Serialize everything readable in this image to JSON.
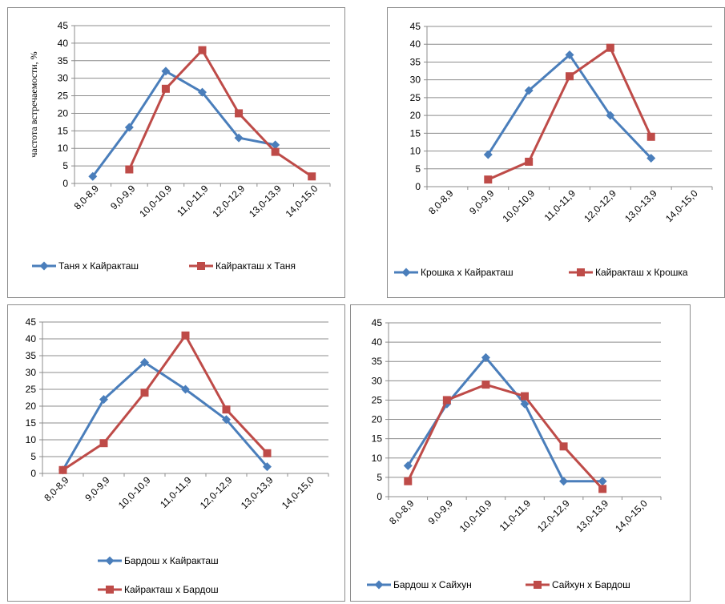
{
  "colors": {
    "series1": "#4a7ebb",
    "series2": "#be4b48",
    "grid": "#8c8c8c",
    "axis": "#8c8c8c"
  },
  "chart_data": [
    {
      "type": "line",
      "ylabel": "частота встречаемости, %",
      "xlabel": "",
      "ylim": [
        0,
        45
      ],
      "yticks": [
        0,
        5,
        10,
        15,
        20,
        25,
        30,
        35,
        40,
        45
      ],
      "grid": true,
      "legend": "bottom",
      "categories": [
        "8,0-8,9",
        "9,0-9,9",
        "10,0-10,9",
        "11,0-11,9",
        "12,0-12,9",
        "13,0-13,9",
        "14,0-15,0"
      ],
      "series": [
        {
          "name": "Таня х Кайракташ",
          "marker": "diamond",
          "values": [
            2,
            16,
            32,
            26,
            13,
            11,
            null
          ]
        },
        {
          "name": "Кайракташ х Таня",
          "marker": "square",
          "values": [
            null,
            4,
            27,
            38,
            20,
            9,
            2
          ]
        }
      ]
    },
    {
      "type": "line",
      "xlabel": "",
      "ylabel": "",
      "ylim": [
        0,
        45
      ],
      "yticks": [
        0,
        5,
        10,
        15,
        20,
        25,
        30,
        35,
        40,
        45
      ],
      "grid": true,
      "legend": "bottom",
      "categories": [
        "8,0-8,9",
        "9,0-9,9",
        "10,0-10,9",
        "11,0-11,9",
        "12,0-12,9",
        "13,0-13,9",
        "14,0-15,0"
      ],
      "series": [
        {
          "name": "Крошка х Кайракташ",
          "marker": "diamond",
          "values": [
            null,
            9,
            27,
            37,
            20,
            8,
            null
          ]
        },
        {
          "name": "Кайракташ х Крошка",
          "marker": "square",
          "values": [
            null,
            2,
            7,
            31,
            39,
            14,
            null
          ]
        }
      ]
    },
    {
      "type": "line",
      "xlabel": "",
      "ylabel": "",
      "ylim": [
        0,
        45
      ],
      "yticks": [
        0,
        5,
        10,
        15,
        20,
        25,
        30,
        35,
        40,
        45
      ],
      "grid": true,
      "legend": "bottom",
      "categories": [
        "8,0-8,9",
        "9,0-9,9",
        "10,0-10,9",
        "11,0-11,9",
        "12,0-12,9",
        "13,0-13,9",
        "14,0-15,0"
      ],
      "series": [
        {
          "name": "Бардош х Кайракташ",
          "marker": "diamond",
          "values": [
            1,
            22,
            33,
            25,
            16,
            2,
            null
          ]
        },
        {
          "name": "Кайракташ х Бардош",
          "marker": "square",
          "values": [
            1,
            9,
            24,
            41,
            19,
            6,
            null
          ]
        }
      ]
    },
    {
      "type": "line",
      "xlabel": "",
      "ylabel": "",
      "ylim": [
        0,
        45
      ],
      "yticks": [
        0,
        5,
        10,
        15,
        20,
        25,
        30,
        35,
        40,
        45
      ],
      "grid": true,
      "legend": "bottom",
      "categories": [
        "8,0-8,9",
        "9,0-9,9",
        "10,0-10,9",
        "11,0-11,9",
        "12,0-12,9",
        "13,0-13,9",
        "14,0-15,0"
      ],
      "series": [
        {
          "name": "Бардош х Сайхун",
          "marker": "diamond",
          "values": [
            8,
            24,
            36,
            24,
            4,
            4,
            null
          ]
        },
        {
          "name": "Сайхун х Бардош",
          "marker": "square",
          "values": [
            4,
            25,
            29,
            26,
            13,
            2,
            null
          ]
        }
      ]
    }
  ]
}
